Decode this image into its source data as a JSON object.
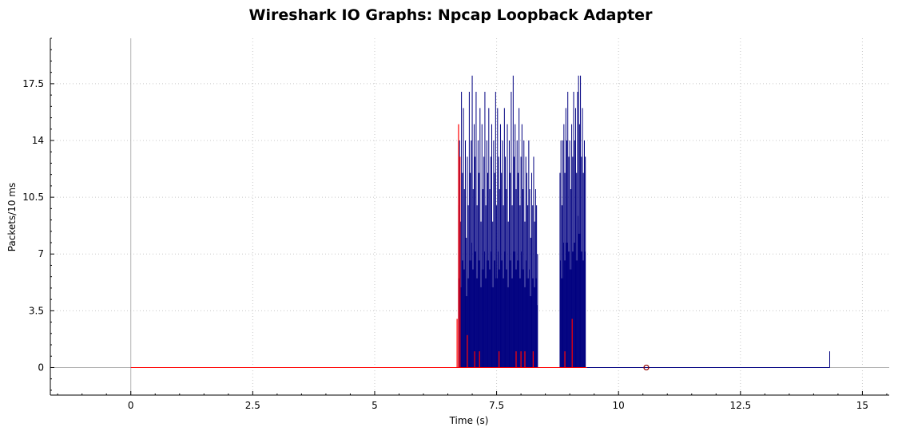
{
  "chart_data": {
    "type": "line",
    "title": "Wireshark IO Graphs: Npcap Loopback Adapter",
    "xlabel": "Time (s)",
    "ylabel": "Packets/10 ms",
    "xlim": [
      -1.65,
      15.55
    ],
    "ylim": [
      -1.7,
      20.3
    ],
    "x_ticks": [
      "0",
      "2.5",
      "5",
      "7.5",
      "10",
      "12.5",
      "15"
    ],
    "y_ticks": [
      "0",
      "3.5",
      "7",
      "10.5",
      "14",
      "17.5"
    ],
    "grid": true,
    "legend": "none",
    "colors": {
      "all_packets": "#000080",
      "tcp_errors": "#ff0000",
      "zero_line": "#b0b0b0"
    },
    "series": [
      {
        "key": "all_packets",
        "style": "impulse",
        "segments": [
          {
            "x": [
              6.72,
              6.74,
              6.76,
              6.78,
              6.8,
              6.82,
              6.84,
              6.86,
              6.88,
              6.9,
              6.92,
              6.94,
              6.96,
              6.98,
              7.0,
              7.02,
              7.04,
              7.06,
              7.08,
              7.1,
              7.12,
              7.14,
              7.16,
              7.18,
              7.2,
              7.22,
              7.24,
              7.26,
              7.28,
              7.3,
              7.32,
              7.34,
              7.36,
              7.38,
              7.4,
              7.42,
              7.44,
              7.46,
              7.48,
              7.5,
              7.52,
              7.54,
              7.56,
              7.58,
              7.6,
              7.62,
              7.64,
              7.66,
              7.68,
              7.7,
              7.72,
              7.74,
              7.76,
              7.78,
              7.8,
              7.82,
              7.84,
              7.86,
              7.88,
              7.9,
              7.92,
              7.94,
              7.96,
              7.98,
              8.0,
              8.02,
              8.04,
              8.06,
              8.08,
              8.1,
              8.12,
              8.14,
              8.16,
              8.18,
              8.2,
              8.22,
              8.24,
              8.26,
              8.28,
              8.3,
              8.32,
              8.34
            ],
            "y": [
              10,
              14,
              9,
              17,
              12,
              16,
              11,
              14,
              8,
              13,
              10,
              17,
              12,
              14,
              18,
              11,
              15,
              13,
              17,
              10,
              14,
              12,
              16,
              9,
              15,
              11,
              13,
              17,
              10,
              14,
              12,
              16,
              11,
              13,
              15,
              9,
              14,
              12,
              17,
              10,
              16,
              13,
              11,
              15,
              12,
              14,
              10,
              16,
              13,
              11,
              15,
              9,
              14,
              12,
              17,
              10,
              18,
              13,
              15,
              11,
              14,
              12,
              16,
              10,
              13,
              15,
              11,
              14,
              9,
              13,
              12,
              10,
              14,
              11,
              8,
              12,
              10,
              13,
              9,
              11,
              10,
              7
            ]
          },
          {
            "x": [
              8.8,
              8.82,
              8.84,
              8.86,
              8.88,
              8.9,
              8.92,
              8.94,
              8.96,
              8.98,
              9.0,
              9.02,
              9.04,
              9.06,
              9.08,
              9.1,
              9.12,
              9.14,
              9.16,
              9.18,
              9.2,
              9.22,
              9.24,
              9.26,
              9.28,
              9.3,
              9.32
            ],
            "y": [
              12,
              14,
              10,
              14,
              15,
              12,
              16,
              14,
              17,
              13,
              14,
              11,
              15,
              13,
              17,
              14,
              16,
              12,
              17,
              18,
              15,
              18,
              13,
              16,
              12,
              14,
              13
            ]
          }
        ],
        "baseline_end": 14.33,
        "final_spike": {
          "x": 14.33,
          "y": 1
        }
      },
      {
        "key": "tcp_errors",
        "style": "impulse",
        "x": [
          6.69,
          6.72,
          6.75,
          6.9,
          7.05,
          7.15,
          7.55,
          7.9,
          8.0,
          8.08,
          8.25,
          8.9,
          9.05
        ],
        "y": [
          3,
          15,
          13,
          2,
          1,
          1,
          1,
          1,
          1,
          1,
          1,
          1,
          3
        ],
        "baseline_end": 9.35
      }
    ],
    "marker": {
      "x": 10.57,
      "y": 0,
      "shape": "circle"
    }
  }
}
